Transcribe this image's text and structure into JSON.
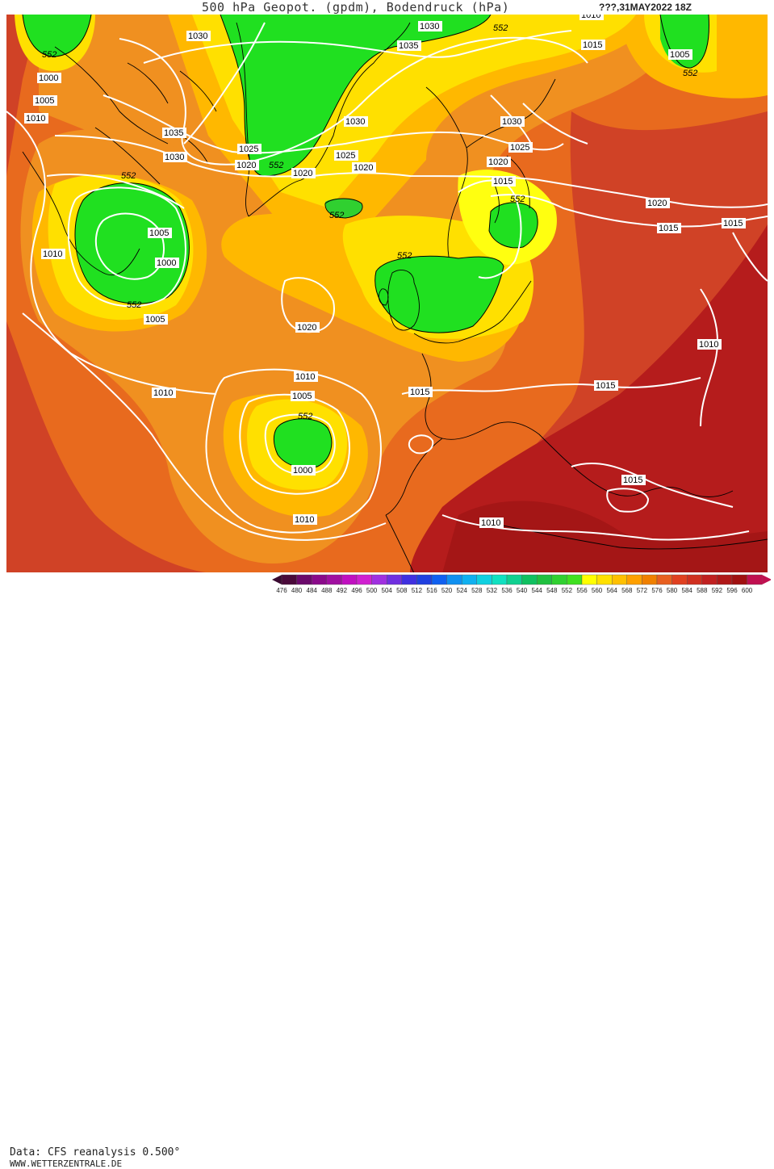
{
  "header": {
    "title": "500 hPa Geopot. (gpdm), Bodendruck (hPa)",
    "date": "???,31MAY2022 18Z"
  },
  "footer": {
    "source": "Data: CFS reanalysis 0.500°",
    "website": "WWW.WETTERZENTRALE.DE"
  },
  "legend": {
    "ticks": [
      "476",
      "480",
      "484",
      "488",
      "492",
      "496",
      "500",
      "504",
      "508",
      "512",
      "516",
      "520",
      "524",
      "528",
      "532",
      "536",
      "540",
      "544",
      "548",
      "552",
      "556",
      "560",
      "564",
      "568",
      "572",
      "576",
      "580",
      "584",
      "588",
      "592",
      "596",
      "600"
    ],
    "colors": [
      "#4a0a3a",
      "#6b0a6b",
      "#8a0a8a",
      "#a010a0",
      "#c010c0",
      "#d020d0",
      "#a030e0",
      "#7030e0",
      "#4030e0",
      "#2040e0",
      "#1060f0",
      "#1090f0",
      "#10b0f0",
      "#10d0e0",
      "#10e0c0",
      "#10d090",
      "#10c060",
      "#20c040",
      "#30d030",
      "#40e020",
      "#ffff00",
      "#ffe000",
      "#ffc000",
      "#ffa000",
      "#f08000",
      "#e86020",
      "#e04020",
      "#d03020",
      "#c02020",
      "#b01818",
      "#a01010",
      "#c01050"
    ]
  },
  "map": {
    "colors": {
      "ocean_base": "#e86a1e",
      "warm_red": "#d04226",
      "deep_red": "#b51c1c",
      "dark_red": "#a41616",
      "orange": "#f09020",
      "amber": "#ffb800",
      "yellow": "#ffe000",
      "bright_yellow": "#ffff10",
      "green": "#20e020",
      "isobar": "#ffffff",
      "coast": "#000000"
    },
    "isobar_labels": [
      "1030",
      "1035",
      "1030",
      "1030",
      "1035",
      "1025",
      "1020",
      "1020",
      "1020",
      "1025",
      "1030",
      "1030",
      "1025",
      "1020",
      "1015",
      "1020",
      "1015",
      "1015",
      "1010",
      "1015",
      "1015",
      "1020",
      "1010",
      "1010",
      "1005",
      "1010",
      "1005",
      "1000",
      "1000",
      "1005",
      "1010",
      "1010",
      "1005",
      "1000",
      "1010",
      "1015",
      "1005",
      "1010",
      "1015"
    ],
    "geopot_labels": [
      "552",
      "552",
      "552",
      "552",
      "552",
      "552",
      "552",
      "552",
      "552",
      "552"
    ]
  }
}
